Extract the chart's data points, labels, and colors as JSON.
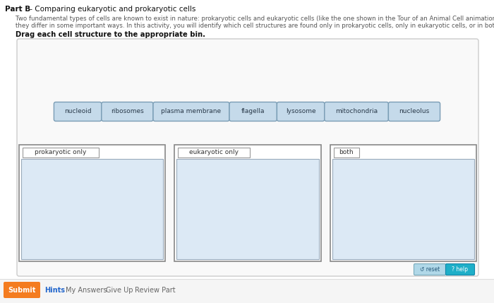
{
  "title_bold": "Part B",
  "title_suffix": " - Comparing eukaryotic and prokaryotic cells",
  "body_text_line1": "Two fundamental types of cells are known to exist in nature: prokaryotic cells and eukaryotic cells (like the one shown in the Tour of an Animal Cell animation).",
  "body_text_line2": "they differ in some important ways. In this activity, you will identify which cell structures are found only in prokaryotic cells, only in eukaryotic cells, or in both typ",
  "drag_instruction": "Drag each cell structure to the appropriate bin.",
  "tags": [
    "nucleoid",
    "ribosomes",
    "plasma membrane",
    "flagella",
    "lysosome",
    "mitochondria",
    "nucleolus"
  ],
  "bins": [
    "prokaryotic only",
    "eukaryotic only",
    "both"
  ],
  "bg_color": "#ffffff",
  "tag_fill": "#c5daea",
  "tag_edge": "#7a9db5",
  "tag_text_color": "#2a3a4a",
  "bin_fill": "#dce9f5",
  "bin_edge": "#8899aa",
  "bin_label_color": "#333333",
  "submit_bg": "#f47c20",
  "submit_text": "#ffffff",
  "hints_color": "#2266cc",
  "bottom_bar_items": [
    "My Answers",
    "Give Up",
    "Review Part"
  ],
  "reset_bg": "#b0d8e8",
  "help_bg": "#1fafc8",
  "reset_text": "↺ reset",
  "help_text": "? help"
}
